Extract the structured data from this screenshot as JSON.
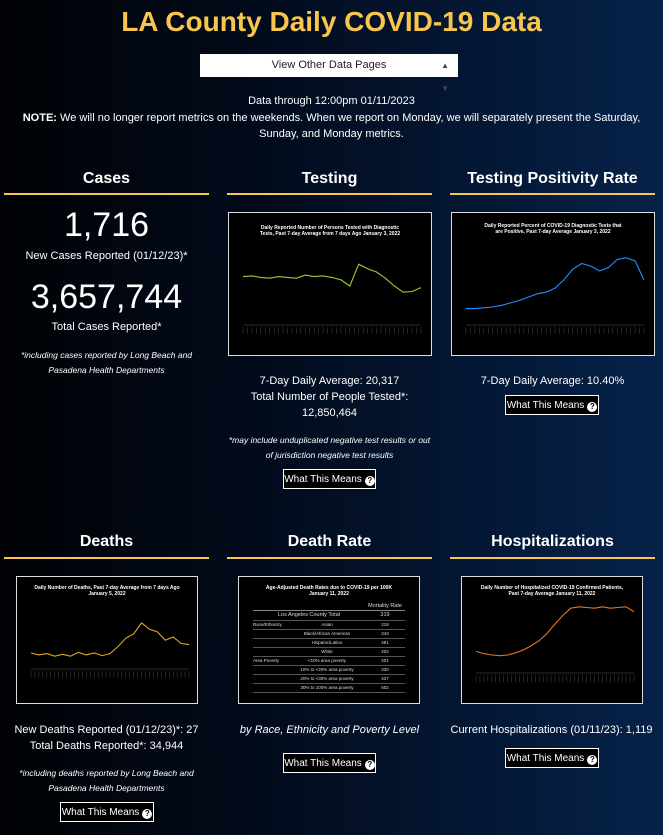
{
  "page": {
    "title": "LA County Daily COVID-19 Data",
    "selector": "View Other Data Pages",
    "data_through": "Data through 12:00pm 01/11/2023",
    "note_label": "NOTE:",
    "note_text": "We will no longer report metrics on the weekends. When we report on Monday, we will separately present the Saturday, Sunday, and Monday metrics."
  },
  "cases": {
    "heading": "Cases",
    "new_value": "1,716",
    "new_label": "New Cases Reported (01/12/23)*",
    "total_value": "3,657,744",
    "total_label": "Total Cases Reported*",
    "footnote": "*including cases reported by Long Beach and Pasadena Health Departments"
  },
  "testing": {
    "heading": "Testing",
    "chart_title": "Daily Reported Number of Persons Tested with Diagnostic Tests, Past 7-day Average from 7 days Ago January 3, 2022",
    "avg": "7-Day Daily Average: 20,317",
    "total_label": "Total Number of People Tested*:",
    "total_value": "12,850,464",
    "footnote": "*may include unduplicated negative test results or out of jurisdiction negative test results",
    "button": "What This Means"
  },
  "positivity": {
    "heading": "Testing Positivity Rate",
    "chart_title": "Daily Reported Percent of COVID-19 Diagnostic Tests that are Positive, Past 7-day Average January 3, 2022",
    "avg": "7-Day Daily Average: 10.40%",
    "button": "What This Means"
  },
  "deaths": {
    "heading": "Deaths",
    "chart_title": "Daily Number of Deaths, Past 7-day Average from 7 days Ago January 5, 2022",
    "new": "New Deaths Reported (01/12/23)*: 27",
    "total": "Total Deaths Reported*: 34,944",
    "footnote": "*including deaths reported by Long Beach and Pasadena Health Departments",
    "button": "What This Means"
  },
  "death_rate": {
    "heading": "Death Rate",
    "chart_title": "Age-Adjusted Death Rates due to COVID-19 per 100K January 11, 2022",
    "table_header": "Mortality Rate",
    "rows": [
      {
        "group": "",
        "label": "Los Angeles County Total",
        "value": "319"
      },
      {
        "group": "Race/Ethnicity",
        "label": "Asian",
        "value": "219"
      },
      {
        "group": "",
        "label": "Black/African American",
        "value": "343"
      },
      {
        "group": "",
        "label": "Hispanic/Latino",
        "value": "481"
      },
      {
        "group": "",
        "label": "White",
        "value": "202"
      },
      {
        "group": "Area Poverty",
        "label": "<10% area poverty",
        "value": "201"
      },
      {
        "group": "",
        "label": "10% to <20% area poverty",
        "value": "330"
      },
      {
        "group": "",
        "label": "20% to <30% area poverty",
        "value": "427"
      },
      {
        "group": "",
        "label": "30% to 100% area poverty",
        "value": "502"
      }
    ],
    "caption": "by Race, Ethnicity and Poverty Level",
    "button": "What This Means"
  },
  "hospitalizations": {
    "heading": "Hospitalizations",
    "chart_title": "Daily Number of Hospitalized COVID-19 Confirmed Patients, Past 7-day Average January 11, 2022",
    "current": "Current Hospitalizations (01/11/23): 1,119",
    "button": "What This Means"
  },
  "colors": {
    "accent": "#f8c64d",
    "testing_line": "#9acd32",
    "positivity_line": "#1e90ff",
    "deaths_line": "#e6a817",
    "hosp_line": "#e8741c"
  },
  "chart_data": [
    {
      "type": "line",
      "title": "Daily Reported Number of Persons Tested with Diagnostic Tests, Past 7-day Average from 7 days Ago January 3, 2022",
      "x": [
        0,
        5,
        10,
        15,
        20,
        25,
        30,
        35,
        40,
        45,
        50,
        55,
        60,
        65,
        70,
        75,
        80,
        85,
        90,
        95,
        100
      ],
      "values": [
        62,
        63,
        61,
        60,
        62,
        61,
        60,
        64,
        62,
        63,
        61,
        58,
        50,
        78,
        72,
        68,
        60,
        50,
        42,
        43,
        48
      ]
    },
    {
      "type": "line",
      "title": "Daily Reported Percent of COVID-19 Diagnostic Tests that are Positive, Past 7-day Average January 3, 2022",
      "x": [
        0,
        5,
        10,
        15,
        20,
        25,
        30,
        35,
        40,
        45,
        50,
        55,
        60,
        65,
        70,
        75,
        80,
        85,
        90,
        95,
        100
      ],
      "values": [
        20,
        20,
        21,
        22,
        24,
        27,
        30,
        34,
        38,
        40,
        45,
        55,
        68,
        75,
        72,
        66,
        70,
        80,
        82,
        78,
        55
      ]
    },
    {
      "type": "line",
      "title": "Daily Number of Deaths, Past 7-day Average from 7 days Ago January 5, 2022",
      "x": [
        0,
        5,
        10,
        15,
        20,
        25,
        30,
        35,
        40,
        45,
        50,
        55,
        60,
        65,
        70,
        75,
        80,
        85,
        90,
        95,
        100
      ],
      "values": [
        25,
        22,
        24,
        20,
        23,
        20,
        26,
        22,
        25,
        21,
        24,
        35,
        48,
        55,
        72,
        62,
        58,
        45,
        50,
        40,
        38
      ]
    },
    {
      "type": "line",
      "title": "Daily Number of Hospitalized COVID-19 Confirmed Patients, Past 7-day Average January 11, 2022",
      "x": [
        0,
        5,
        10,
        15,
        20,
        25,
        30,
        35,
        40,
        45,
        50,
        55,
        60,
        65,
        70,
        75,
        80,
        85,
        90,
        95,
        100
      ],
      "values": [
        30,
        27,
        25,
        24,
        25,
        28,
        32,
        38,
        45,
        55,
        68,
        80,
        90,
        92,
        91,
        90,
        92,
        90,
        91,
        92,
        85
      ]
    }
  ]
}
